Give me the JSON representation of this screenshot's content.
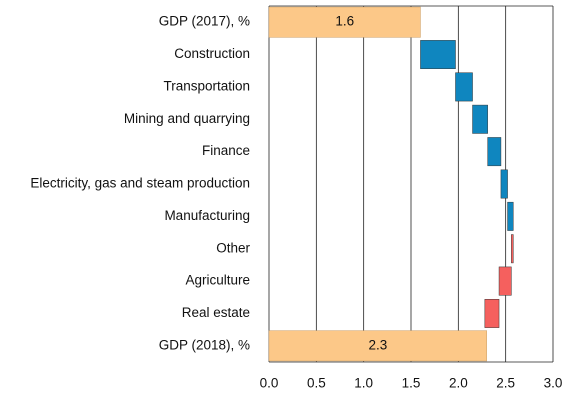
{
  "chart_data": {
    "type": "waterfall",
    "categories": [
      "GDP (2017), %",
      "Construction",
      "Transportation",
      "Mining and quarrying",
      "Finance",
      "Electricity, gas and steam production",
      "Manufacturing",
      "Other",
      "Agriculture",
      "Real estate",
      "GDP (2018), %"
    ],
    "measure": [
      "total",
      "relative",
      "relative",
      "relative",
      "relative",
      "relative",
      "relative",
      "relative",
      "relative",
      "relative",
      "total"
    ],
    "values": [
      1.6,
      0.37,
      0.18,
      0.16,
      0.14,
      0.07,
      0.06,
      -0.02,
      -0.13,
      -0.15,
      2.3
    ],
    "colors": {
      "total": "#fcc888",
      "increase": "#0f86bf",
      "decrease": "#f5605e"
    },
    "xlim": [
      0,
      3
    ],
    "xticks": [
      {
        "value": 0,
        "label": "0.0"
      },
      0.5,
      {
        "value": 1,
        "label": "1.0"
      },
      1.5,
      {
        "value": 2,
        "label": "2.0"
      },
      2.5,
      {
        "value": 3,
        "label": "3.0"
      }
    ],
    "grid": true
  }
}
